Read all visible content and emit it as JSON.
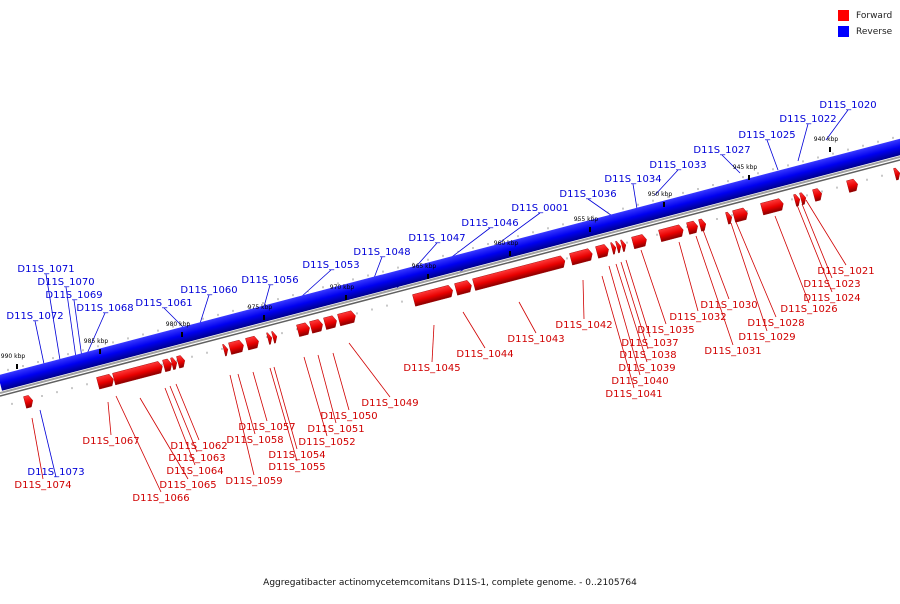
{
  "legend": [
    {
      "label": "Forward",
      "color": "#ff0000"
    },
    {
      "label": "Reverse",
      "color": "#0000ff"
    }
  ],
  "caption": "Aggregatibacter actinomycetemcomitans D11S-1, complete genome. - 0..2105764",
  "kbp_labels": [
    "940 kbp",
    "945 kbp",
    "950 kbp",
    "955 kbp",
    "960 kbp",
    "965 kbp",
    "970 kbp",
    "975 kbp",
    "980 kbp",
    "985 kbp",
    "990 kbp"
  ],
  "genes_reverse": [
    "D11S_1020",
    "D11S_1022",
    "D11S_1025",
    "D11S_1027",
    "D11S_1033",
    "D11S_1034",
    "D11S_1036",
    "D11S_0001",
    "D11S_1046",
    "D11S_1047",
    "D11S_1048",
    "D11S_1053",
    "D11S_1056",
    "D11S_1060",
    "D11S_1061",
    "D11S_1068",
    "D11S_1069",
    "D11S_1070",
    "D11S_1071",
    "D11S_1072",
    "D11S_1073"
  ],
  "genes_forward": [
    "D11S_1021",
    "D11S_1023",
    "D11S_1024",
    "D11S_1026",
    "D11S_1028",
    "D11S_1029",
    "D11S_1030",
    "D11S_1031",
    "D11S_1032",
    "D11S_1035",
    "D11S_1037",
    "D11S_1038",
    "D11S_1039",
    "D11S_1040",
    "D11S_1041",
    "D11S_1042",
    "D11S_1043",
    "D11S_1044",
    "D11S_1045",
    "D11S_1049",
    "D11S_1050",
    "D11S_1051",
    "D11S_1052",
    "D11S_1054",
    "D11S_1055",
    "D11S_1057",
    "D11S_1058",
    "D11S_1059",
    "D11S_1062",
    "D11S_1063",
    "D11S_1064",
    "D11S_1065",
    "D11S_1066",
    "D11S_1067",
    "D11S_1074"
  ]
}
